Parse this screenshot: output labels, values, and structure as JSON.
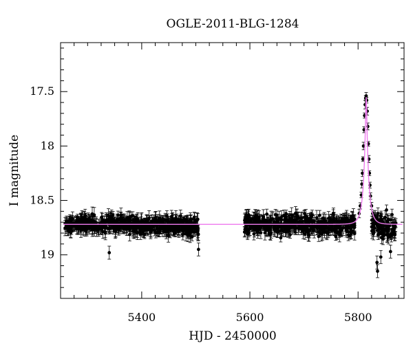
{
  "chart_data": {
    "type": "scatter",
    "title": "OGLE-2011-BLG-1284",
    "xlabel": "HJD - 2450000",
    "ylabel": "I magnitude",
    "xlim": [
      5250,
      5885
    ],
    "ylim": [
      19.4,
      17.05
    ],
    "y_inverted": true,
    "grid": false,
    "x_ticks": [
      5400,
      5600,
      5800
    ],
    "y_ticks": [
      17.5,
      18,
      18.5,
      19
    ],
    "x_tick_labels": [
      "5400",
      "5600",
      "5800"
    ],
    "y_tick_labels": [
      "17.5",
      "18",
      "18.5",
      "19"
    ],
    "colors": {
      "data": "#000000",
      "model": "#ee7aee"
    },
    "baseline_magnitude": 18.72,
    "peak": {
      "x": 5815,
      "y": 17.55
    },
    "series": [
      {
        "type": "scatter",
        "error_bars": true,
        "segments": [
          {
            "x_range": [
              5258,
              5295
            ],
            "mean": 18.72,
            "spread": 0.08
          },
          {
            "x_range": [
              5295,
              5395
            ],
            "mean": 18.72,
            "spread": 0.1
          },
          {
            "x_range": [
              5395,
              5480
            ],
            "mean": 18.73,
            "spread": 0.1
          },
          {
            "x_range": [
              5480,
              5505
            ],
            "mean": 18.74,
            "spread": 0.1
          },
          {
            "x_range": [
              5590,
              5700
            ],
            "mean": 18.72,
            "spread": 0.11
          },
          {
            "x_range": [
              5700,
              5795
            ],
            "mean": 18.73,
            "spread": 0.12
          },
          {
            "x_range": [
              5825,
              5870
            ],
            "mean": 18.75,
            "spread": 0.14
          }
        ],
        "event_points": [
          {
            "x": 5802,
            "y": 18.62
          },
          {
            "x": 5804,
            "y": 18.55
          },
          {
            "x": 5806,
            "y": 18.45
          },
          {
            "x": 5807,
            "y": 18.35
          },
          {
            "x": 5808,
            "y": 18.25
          },
          {
            "x": 5809,
            "y": 18.12
          },
          {
            "x": 5810,
            "y": 18.0
          },
          {
            "x": 5811,
            "y": 17.85
          },
          {
            "x": 5812,
            "y": 17.72
          },
          {
            "x": 5813,
            "y": 17.62
          },
          {
            "x": 5814,
            "y": 17.56
          },
          {
            "x": 5815,
            "y": 17.54
          },
          {
            "x": 5816,
            "y": 17.58
          },
          {
            "x": 5817,
            "y": 17.68
          },
          {
            "x": 5818,
            "y": 17.82
          },
          {
            "x": 5819,
            "y": 17.98
          },
          {
            "x": 5820,
            "y": 18.12
          },
          {
            "x": 5821,
            "y": 18.25
          },
          {
            "x": 5822,
            "y": 18.36
          },
          {
            "x": 5823,
            "y": 18.46
          },
          {
            "x": 5825,
            "y": 18.55
          },
          {
            "x": 5827,
            "y": 18.62
          },
          {
            "x": 5830,
            "y": 18.67
          }
        ],
        "outliers": [
          {
            "x": 5835,
            "y": 19.07
          },
          {
            "x": 5836,
            "y": 19.15
          },
          {
            "x": 5842,
            "y": 19.02
          },
          {
            "x": 5860,
            "y": 18.97
          },
          {
            "x": 5505,
            "y": 18.95
          },
          {
            "x": 5340,
            "y": 18.98
          }
        ]
      },
      {
        "type": "line",
        "model": "microlensing-fit",
        "baseline": 18.72,
        "t0": 5815,
        "peak": 17.55,
        "tE": 9.5,
        "x_range": [
          5255,
          5882
        ]
      }
    ]
  }
}
